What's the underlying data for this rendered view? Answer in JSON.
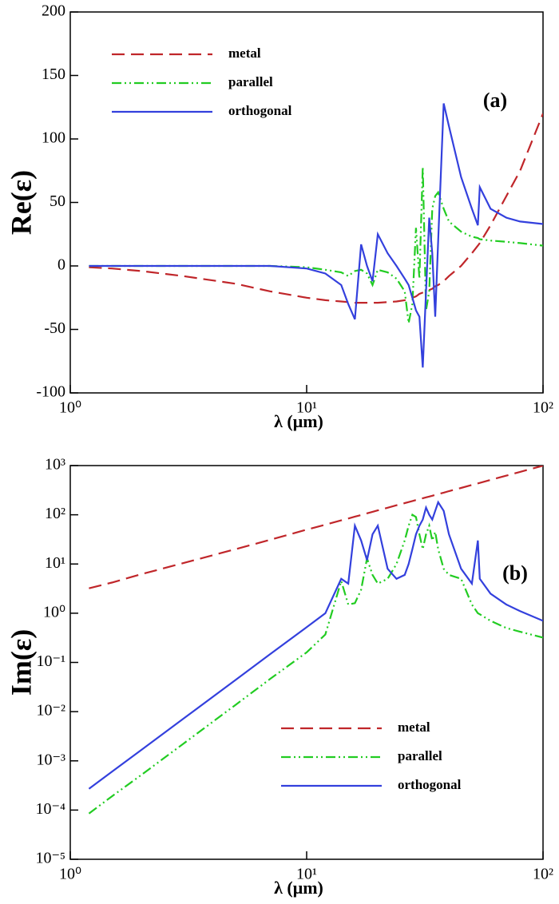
{
  "chart_data": [
    {
      "type": "line",
      "annotation": "(a)",
      "x_label": "λ (μm)",
      "y_label": "Re(ε)",
      "xscale": "log",
      "yscale": "linear",
      "legend": "upper left",
      "xlim": [
        1,
        100
      ],
      "xticks": [
        {
          "value": 1,
          "label": "10⁰"
        },
        {
          "value": 10,
          "label": "10¹"
        },
        {
          "value": 100,
          "label": "10²"
        }
      ],
      "ylim": [
        -100,
        200
      ],
      "yticks": [
        -100,
        -50,
        0,
        50,
        100,
        150,
        200
      ],
      "x": [
        1.2,
        1.5,
        2,
        3,
        5,
        7,
        10,
        12,
        14,
        15,
        16,
        17,
        18,
        19,
        20,
        22,
        24,
        26,
        27,
        28,
        29,
        30,
        31,
        32,
        33,
        34,
        35,
        36,
        38,
        40,
        45,
        50,
        53,
        54,
        60,
        70,
        80,
        100
      ],
      "series": [
        {
          "name": "metal",
          "color": "#c0262a",
          "dash": "dashed",
          "values": [
            -1,
            -2,
            -4,
            -8,
            -14,
            -20,
            -25,
            -27,
            -28,
            -28.5,
            -29,
            -29,
            -29,
            -29,
            -29,
            -28.5,
            -28,
            -27,
            -26,
            -25,
            -24,
            -22,
            -21,
            -20,
            -19,
            -18,
            -16,
            -15,
            -12,
            -8,
            0,
            10,
            16,
            18,
            32,
            55,
            75,
            120
          ]
        },
        {
          "name": "parallel",
          "color": "#22cc22",
          "dash": "dash-dot-dot",
          "values": [
            0,
            0,
            0,
            0,
            0,
            0,
            -1,
            -3,
            -5,
            -8,
            -4,
            -3,
            -6,
            -15,
            -3,
            -5,
            -10,
            -20,
            -45,
            -30,
            30,
            -10,
            78,
            -35,
            -20,
            45,
            55,
            58,
            45,
            35,
            27,
            23,
            22,
            21,
            20,
            19,
            18,
            16
          ]
        },
        {
          "name": "orthogonal",
          "color": "#3340dd",
          "dash": "solid",
          "values": [
            0,
            0,
            0,
            0,
            0,
            0,
            -2,
            -6,
            -15,
            -30,
            -42,
            17,
            0,
            -12,
            25,
            10,
            0,
            -10,
            -15,
            -25,
            -35,
            -40,
            -80,
            -20,
            38,
            10,
            -40,
            20,
            128,
            110,
            70,
            45,
            32,
            62,
            45,
            38,
            35,
            33
          ]
        }
      ]
    },
    {
      "type": "line",
      "annotation": "(b)",
      "x_label": "λ (μm)",
      "y_label": "Im(ε)",
      "xscale": "log",
      "yscale": "log",
      "legend": "lower center",
      "xlim": [
        1,
        100
      ],
      "xticks": [
        {
          "value": 1,
          "label": "10⁰"
        },
        {
          "value": 10,
          "label": "10¹"
        },
        {
          "value": 100,
          "label": "10²"
        }
      ],
      "ylim": [
        1e-05,
        1000
      ],
      "yticks": [
        {
          "value": 1e-05,
          "label": "10⁻⁵"
        },
        {
          "value": 0.0001,
          "label": "10⁻⁴"
        },
        {
          "value": 0.001,
          "label": "10⁻³"
        },
        {
          "value": 0.01,
          "label": "10⁻²"
        },
        {
          "value": 0.1,
          "label": "10⁻¹"
        },
        {
          "value": 1,
          "label": "10⁰"
        },
        {
          "value": 10,
          "label": "10¹"
        },
        {
          "value": 100,
          "label": "10²"
        },
        {
          "value": 1000,
          "label": "10³"
        }
      ],
      "x": [
        1.2,
        1.5,
        2,
        3,
        5,
        7,
        10,
        12,
        14,
        15,
        16,
        17,
        18,
        19,
        20,
        22,
        24,
        26,
        27,
        28,
        29,
        30,
        31,
        32,
        33,
        34,
        35,
        36,
        38,
        40,
        45,
        50,
        53,
        54,
        60,
        70,
        80,
        100
      ],
      "series": [
        {
          "name": "metal",
          "color": "#c0262a",
          "dash": "dashed",
          "values": [
            3.2,
            4.2,
            6.2,
            10.4,
            20,
            31,
            50,
            63,
            77,
            84,
            92,
            99,
            107,
            115,
            123,
            139,
            156,
            173,
            181,
            190,
            199,
            208,
            217,
            226,
            235,
            244,
            254,
            263,
            282,
            302,
            351,
            403,
            434,
            445,
            512,
            624,
            744,
            995
          ]
        },
        {
          "name": "parallel",
          "color": "#22cc22",
          "dash": "dash-dot-dot",
          "values": [
            8.5e-05,
            0.00019,
            0.00052,
            0.0022,
            0.0137,
            0.046,
            0.16,
            0.37,
            4.5,
            1.5,
            1.6,
            3,
            13,
            6,
            4,
            5,
            10,
            30,
            60,
            100,
            90,
            40,
            20,
            40,
            60,
            30,
            45,
            20,
            8,
            6,
            5,
            1.5,
            1,
            0.95,
            0.7,
            0.5,
            0.42,
            0.32
          ]
        },
        {
          "name": "orthogonal",
          "color": "#3340dd",
          "dash": "solid",
          "values": [
            0.00027,
            0.0006,
            0.00167,
            0.0071,
            0.044,
            0.147,
            0.52,
            1,
            5,
            4,
            60,
            30,
            12,
            40,
            60,
            8,
            5,
            6,
            10,
            20,
            40,
            60,
            80,
            140,
            100,
            80,
            120,
            180,
            120,
            40,
            8,
            4,
            30,
            5,
            2.5,
            1.5,
            1.1,
            0.7
          ]
        }
      ]
    }
  ]
}
